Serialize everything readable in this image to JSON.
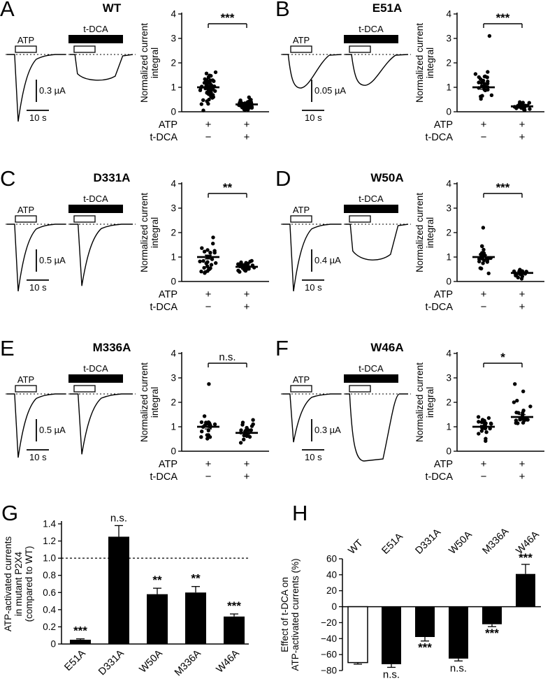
{
  "panels": [
    {
      "letter": "A",
      "title": "WT",
      "trace": {
        "label_atp": "ATP",
        "label_tdca": "t-DCA",
        "scale_current": "0.3 µA",
        "scale_time": "10 s",
        "rel_amp_first": 1.0,
        "rel_amp_second": 0.36,
        "shape_first": "spike",
        "shape_second": "plateau"
      }
    },
    {
      "letter": "B",
      "title": "E51A",
      "trace": {
        "label_atp": "ATP",
        "label_tdca": "t-DCA",
        "scale_current": "0.05 µA",
        "scale_time": "10 s",
        "rel_amp_first": 0.5,
        "rel_amp_second": 0.46,
        "shape_first": "round",
        "shape_second": "round"
      }
    },
    {
      "letter": "C",
      "title": "D331A",
      "trace": {
        "label_atp": "ATP",
        "label_tdca": "t-DCA",
        "scale_current": "0.5 µA",
        "scale_time": "10 s",
        "rel_amp_first": 1.0,
        "rel_amp_second": 0.92,
        "shape_first": "spike",
        "shape_second": "spike"
      }
    },
    {
      "letter": "D",
      "title": "W50A",
      "trace": {
        "label_atp": "ATP",
        "label_tdca": "t-DCA",
        "scale_current": "0.4 µA",
        "scale_time": "10 s",
        "rel_amp_first": 1.0,
        "rel_amp_second": 0.5,
        "shape_first": "spike",
        "shape_second": "plateau"
      }
    },
    {
      "letter": "E",
      "title": "M336A",
      "trace": {
        "label_atp": "ATP",
        "label_tdca": "t-DCA",
        "scale_current": "0.5 µA",
        "scale_time": "10 s",
        "rel_amp_first": 0.95,
        "rel_amp_second": 0.9,
        "shape_first": "spike",
        "shape_second": "spike"
      }
    },
    {
      "letter": "F",
      "title": "W46A",
      "trace": {
        "label_atp": "ATP",
        "label_tdca": "t-DCA",
        "scale_current": "0.3 µA",
        "scale_time": "10 s",
        "rel_amp_first": 0.72,
        "rel_amp_second": 1.0,
        "shape_first": "spike",
        "shape_second": "broad"
      }
    },
    {
      "letter": "G"
    },
    {
      "letter": "H"
    }
  ],
  "chart_data": [
    {
      "type": "scatter",
      "panel": "A",
      "title": "WT",
      "ylabel_lines": [
        "Normalized current",
        "integral"
      ],
      "ylim": [
        0,
        4
      ],
      "yticks": [
        0,
        1,
        2,
        3,
        4
      ],
      "sig": "***",
      "groups": [
        {
          "mean": 1.0,
          "sem": 0.05,
          "sd": 0.4,
          "n": 55,
          "max": 2.35
        },
        {
          "mean": 0.3,
          "sem": 0.03,
          "sd": 0.14,
          "n": 48,
          "max": 0.85
        }
      ],
      "x_rows": [
        {
          "label": "ATP",
          "values": [
            "+",
            "+"
          ]
        },
        {
          "label": "t-DCA",
          "values": [
            "−",
            "+"
          ]
        }
      ]
    },
    {
      "type": "scatter",
      "panel": "B",
      "title": "E51A",
      "ylabel_lines": [
        "Normalized current",
        "integral"
      ],
      "ylim": [
        0,
        4
      ],
      "yticks": [
        0,
        1,
        2,
        3,
        4
      ],
      "sig": "***",
      "groups": [
        {
          "mean": 1.0,
          "sem": 0.08,
          "sd": 0.32,
          "n": 26,
          "max": 2.05,
          "extra": [
            3.1
          ]
        },
        {
          "mean": 0.22,
          "sem": 0.03,
          "sd": 0.12,
          "n": 26,
          "max": 0.6
        }
      ],
      "x_rows": [
        {
          "label": "ATP",
          "values": [
            "+",
            "+"
          ]
        },
        {
          "label": "t-DCA",
          "values": [
            "−",
            "+"
          ]
        }
      ]
    },
    {
      "type": "scatter",
      "panel": "C",
      "title": "D331A",
      "ylabel_lines": [
        "Normalized current",
        "integral"
      ],
      "ylim": [
        0,
        4
      ],
      "yticks": [
        0,
        1,
        2,
        3,
        4
      ],
      "sig": "**",
      "groups": [
        {
          "mean": 1.0,
          "sem": 0.08,
          "sd": 0.36,
          "n": 28,
          "max": 2.0
        },
        {
          "mean": 0.6,
          "sem": 0.04,
          "sd": 0.16,
          "n": 27,
          "max": 1.05
        }
      ],
      "x_rows": [
        {
          "label": "ATP",
          "values": [
            "+",
            "+"
          ]
        },
        {
          "label": "t-DCA",
          "values": [
            "−",
            "+"
          ]
        }
      ]
    },
    {
      "type": "scatter",
      "panel": "D",
      "title": "W50A",
      "ylabel_lines": [
        "Normalized current",
        "integral"
      ],
      "ylim": [
        0,
        4
      ],
      "yticks": [
        0,
        1,
        2,
        3,
        4
      ],
      "sig": "***",
      "groups": [
        {
          "mean": 1.0,
          "sem": 0.08,
          "sd": 0.32,
          "n": 21,
          "max": 1.9,
          "extra": [
            2.2
          ]
        },
        {
          "mean": 0.35,
          "sem": 0.03,
          "sd": 0.12,
          "n": 20,
          "max": 0.7
        }
      ],
      "x_rows": [
        {
          "label": "ATP",
          "values": [
            "+",
            "+"
          ]
        },
        {
          "label": "t-DCA",
          "values": [
            "−",
            "+"
          ]
        }
      ]
    },
    {
      "type": "scatter",
      "panel": "E",
      "title": "M336A",
      "ylabel_lines": [
        "Normalized current",
        "integral"
      ],
      "ylim": [
        0,
        4
      ],
      "yticks": [
        0,
        1,
        2,
        3,
        4
      ],
      "sig": "n.s.",
      "groups": [
        {
          "mean": 1.0,
          "sem": 0.09,
          "sd": 0.34,
          "n": 20,
          "max": 1.95,
          "extra": [
            2.75
          ]
        },
        {
          "mean": 0.75,
          "sem": 0.06,
          "sd": 0.2,
          "n": 20,
          "max": 1.3
        }
      ],
      "x_rows": [
        {
          "label": "ATP",
          "values": [
            "+",
            "+"
          ]
        },
        {
          "label": "t-DCA",
          "values": [
            "−",
            "+"
          ]
        }
      ]
    },
    {
      "type": "scatter",
      "panel": "F",
      "title": "W46A",
      "ylabel_lines": [
        "Normalized current",
        "integral"
      ],
      "ylim": [
        0,
        4
      ],
      "yticks": [
        0,
        1,
        2,
        3,
        4
      ],
      "sig": "*",
      "groups": [
        {
          "mean": 1.0,
          "sem": 0.06,
          "sd": 0.27,
          "n": 21,
          "max": 1.7
        },
        {
          "mean": 1.4,
          "sem": 0.1,
          "sd": 0.33,
          "n": 19,
          "max": 2.1,
          "extra": [
            2.75,
            2.45
          ]
        }
      ],
      "x_rows": [
        {
          "label": "ATP",
          "values": [
            "+",
            "+"
          ]
        },
        {
          "label": "t-DCA",
          "values": [
            "−",
            "+"
          ]
        }
      ]
    },
    {
      "type": "bar",
      "panel": "G",
      "ylabel_lines": [
        "ATP-activated currents",
        "in mutant P2X4",
        "(compared to WT)"
      ],
      "categories": [
        "E51A",
        "D331A",
        "W50A",
        "M336A",
        "W46A"
      ],
      "values": [
        0.05,
        1.25,
        0.58,
        0.6,
        0.32
      ],
      "errors": [
        0.01,
        0.13,
        0.07,
        0.07,
        0.03
      ],
      "sig": [
        "***",
        "n.s.",
        "**",
        "**",
        "***"
      ],
      "ylim": [
        0,
        1.4
      ],
      "yticks": [
        0,
        0.2,
        0.4,
        0.6,
        0.8,
        1.0,
        1.2,
        1.4
      ],
      "reference_line": 1.0
    },
    {
      "type": "bar",
      "panel": "H",
      "ylabel_lines": [
        "Effect of t-DCA on",
        "ATP-activated currents (%)"
      ],
      "categories": [
        "WT",
        "E51A",
        "D331A",
        "W50A",
        "M336A",
        "W46A"
      ],
      "values": [
        -70,
        -72,
        -38,
        -65,
        -22,
        41
      ],
      "errors": [
        2,
        4,
        5,
        3,
        3,
        12
      ],
      "sig": [
        "",
        "n.s.",
        "***",
        "n.s.",
        "***",
        "***"
      ],
      "bar_fills": [
        "white",
        "black",
        "black",
        "black",
        "black",
        "black"
      ],
      "ylim": [
        -80,
        60
      ],
      "yticks": [
        -80,
        -60,
        -40,
        -20,
        0,
        20,
        40,
        60
      ]
    }
  ]
}
